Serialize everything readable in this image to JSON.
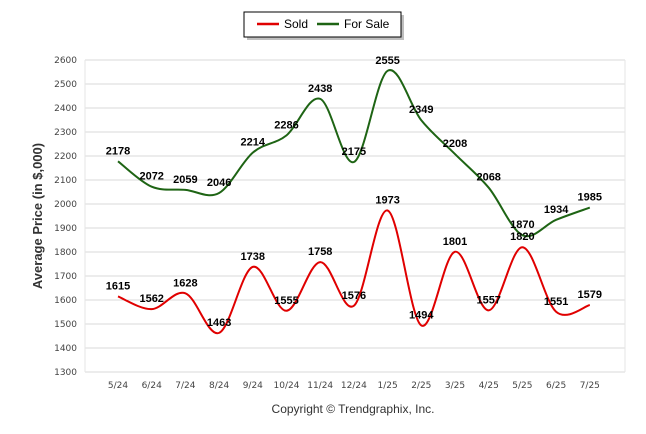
{
  "chart_data": {
    "type": "line",
    "categories": [
      "5/24",
      "6/24",
      "7/24",
      "8/24",
      "9/24",
      "10/24",
      "11/24",
      "12/24",
      "1/25",
      "2/25",
      "3/25",
      "4/25",
      "5/25",
      "6/25",
      "7/25"
    ],
    "series": [
      {
        "name": "Sold",
        "color": "#e00000",
        "values": [
          1615,
          1562,
          1628,
          1463,
          1738,
          1555,
          1758,
          1576,
          1973,
          1494,
          1801,
          1557,
          1820,
          1551,
          1579
        ]
      },
      {
        "name": "For Sale",
        "color": "#1e6414",
        "values": [
          2178,
          2072,
          2059,
          2046,
          2214,
          2286,
          2438,
          2175,
          2555,
          2349,
          2208,
          2068,
          1870,
          1934,
          1985
        ]
      }
    ],
    "ylabel": "Average Price (in $,000)",
    "xlabel": "",
    "ylim": [
      1300,
      2600
    ],
    "yticks": [
      1300,
      1400,
      1500,
      1600,
      1700,
      1800,
      1900,
      2000,
      2100,
      2200,
      2300,
      2400,
      2500,
      2600
    ],
    "grid": true,
    "legend_position": "top-center",
    "footer": "Copyright © Trendgraphix, Inc."
  }
}
